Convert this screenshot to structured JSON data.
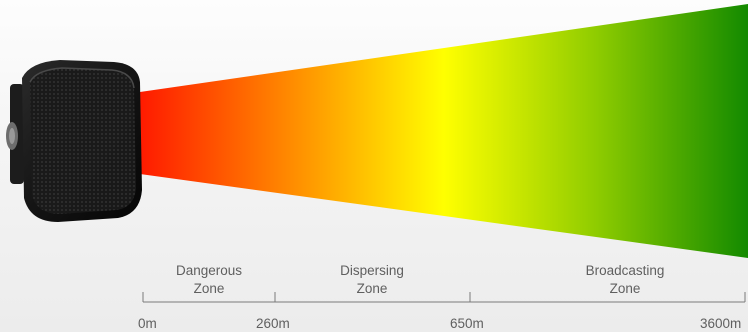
{
  "zones": [
    {
      "line1": "Dangerous",
      "line2": "Zone"
    },
    {
      "line1": "Dispersing",
      "line2": "Zone"
    },
    {
      "line1": "Broadcasting",
      "line2": "Zone"
    }
  ],
  "distances": [
    "0m",
    "260m",
    "650m",
    "3600m"
  ],
  "beam_colors": {
    "start": "#ff1a00",
    "middle": "#ffff00",
    "end": "#138a00"
  },
  "device": {
    "icon": "loudspeaker-device-icon"
  }
}
